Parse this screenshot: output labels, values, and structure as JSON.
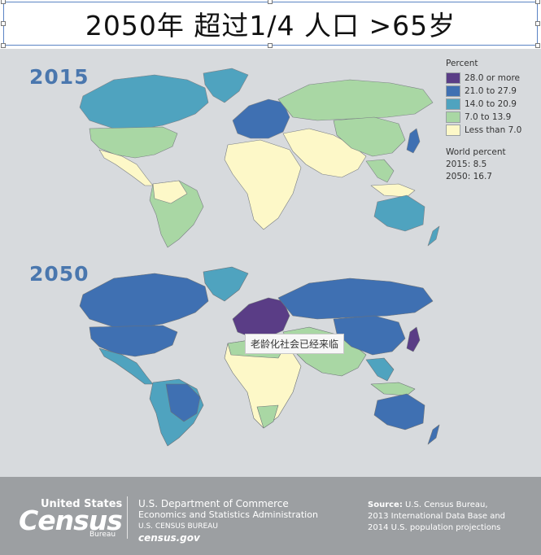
{
  "slide": {
    "title": "2050年  超过1/4 人口  >65岁"
  },
  "maps": [
    {
      "year": "2015"
    },
    {
      "year": "2050"
    }
  ],
  "legend": {
    "title": "Percent",
    "items": [
      {
        "label": "28.0 or more",
        "color": "#5a3d86"
      },
      {
        "label": "21.0 to 27.9",
        "color": "#3f70b2"
      },
      {
        "label": "14.0 to 20.9",
        "color": "#4fa3bf"
      },
      {
        "label": "7.0 to 13.9",
        "color": "#a9d7a4"
      },
      {
        "label": "Less than 7.0",
        "color": "#fdf8c8"
      }
    ],
    "world_title": "World percent",
    "world_2015": "2015: 8.5",
    "world_2050": "2050: 16.7"
  },
  "overlay": {
    "caption": "老龄化社会已经来临"
  },
  "footer": {
    "logo_top": "United States",
    "logo_main": "Census",
    "logo_sub": "Bureau",
    "dept_1": "U.S. Department of Commerce",
    "dept_2": "Economics and Statistics Administration",
    "dept_3": "U.S. CENSUS BUREAU",
    "dept_4": "census.gov",
    "source_label": "Source:",
    "source_1": " U.S. Census Bureau,",
    "source_2": "2013 International Data Base and",
    "source_3": "2014 U.S. population projections"
  },
  "colors": {
    "ocean": "#d7dadd",
    "year_text": "#4a77ae",
    "footer_bg": "#9c9fa2"
  }
}
